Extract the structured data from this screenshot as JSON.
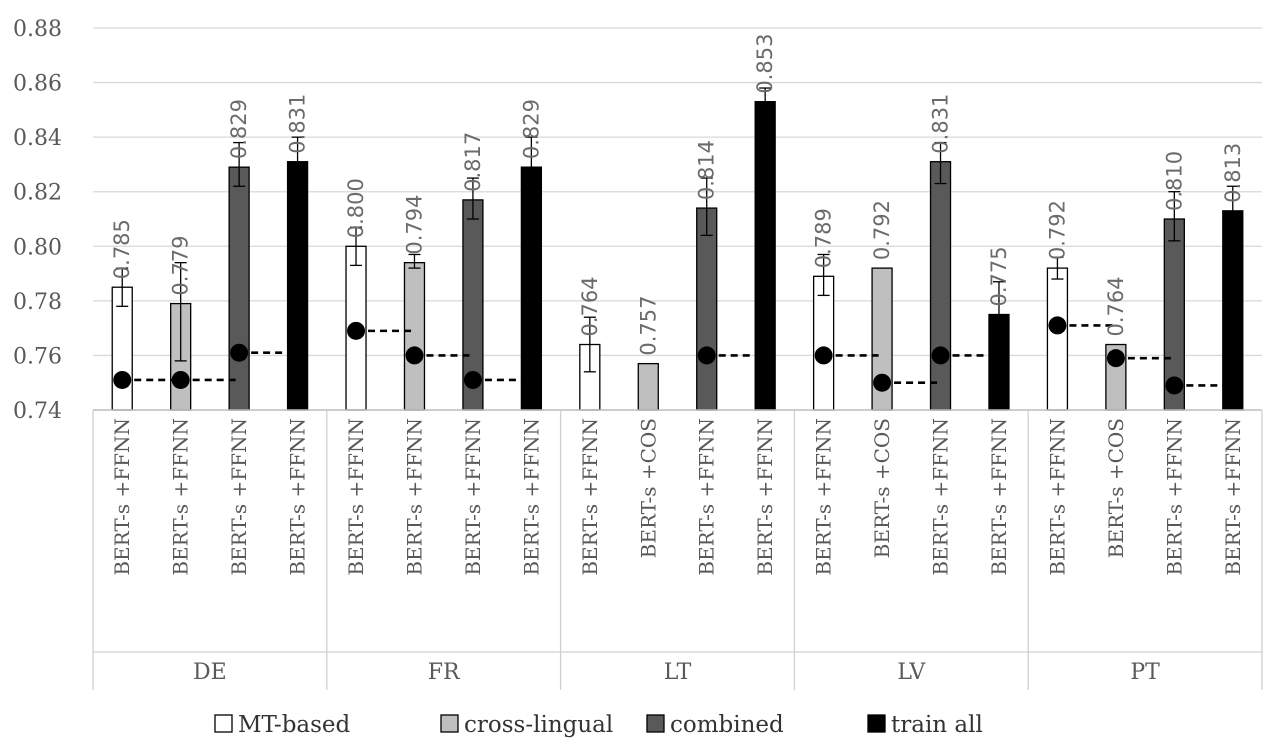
{
  "chart_data": {
    "type": "bar",
    "title": "",
    "xlabel": "",
    "ylabel": "",
    "ylim": [
      0.74,
      0.88
    ],
    "yticks": [
      "0.74",
      "0.76",
      "0.78",
      "0.80",
      "0.82",
      "0.84",
      "0.86",
      "0.88"
    ],
    "grid": true,
    "legend_position": "bottom",
    "legend": [
      {
        "name": "MT-based",
        "color": "#ffffff"
      },
      {
        "name": "cross-lingual",
        "color": "#bfbfbf"
      },
      {
        "name": "combined",
        "color": "#595959"
      },
      {
        "name": "train all",
        "color": "#000000"
      }
    ],
    "groups": [
      {
        "name": "DE",
        "bars": [
          {
            "label": "BERT-s +FFNN",
            "series": "MT-based",
            "value": 0.785,
            "value_label": "0.785",
            "err": [
              0.778,
              0.792
            ],
            "baseline": 0.751
          },
          {
            "label": "BERT-s +FFNN",
            "series": "cross-lingual",
            "value": 0.779,
            "value_label": "0.779",
            "err": [
              0.758,
              0.794
            ],
            "baseline": 0.751
          },
          {
            "label": "BERT-s +FFNN",
            "series": "combined",
            "value": 0.829,
            "value_label": "0.829",
            "err": [
              0.822,
              0.838
            ],
            "baseline": 0.761
          },
          {
            "label": "BERT-s +FFNN",
            "series": "train all",
            "value": 0.831,
            "value_label": "0.831",
            "err": [
              0.821,
              0.84
            ],
            "baseline": 0.751
          }
        ]
      },
      {
        "name": "FR",
        "bars": [
          {
            "label": "BERT-s +FFNN",
            "series": "MT-based",
            "value": 0.8,
            "value_label": "0.800",
            "err": [
              0.793,
              0.807
            ],
            "baseline": 0.769
          },
          {
            "label": "BERT-s +FFNN",
            "series": "cross-lingual",
            "value": 0.794,
            "value_label": "0.794",
            "err": [
              0.792,
              0.797
            ],
            "baseline": 0.76
          },
          {
            "label": "BERT-s +FFNN",
            "series": "combined",
            "value": 0.817,
            "value_label": "0.817",
            "err": [
              0.81,
              0.825
            ],
            "baseline": 0.751
          },
          {
            "label": "BERT-s +FFNN",
            "series": "train all",
            "value": 0.829,
            "value_label": "0.829",
            "err": [
              0.816,
              0.84
            ],
            "baseline": 0.769
          }
        ]
      },
      {
        "name": "LT",
        "bars": [
          {
            "label": "BERT-s +FFNN",
            "series": "MT-based",
            "value": 0.764,
            "value_label": "0.764",
            "err": [
              0.754,
              0.774
            ],
            "baseline": null
          },
          {
            "label": "BERT-s +COS",
            "series": "cross-lingual",
            "value": 0.757,
            "value_label": "0.757",
            "err": null,
            "baseline": null
          },
          {
            "label": "BERT-s +FFNN",
            "series": "combined",
            "value": 0.814,
            "value_label": "0.814",
            "err": [
              0.804,
              0.825
            ],
            "baseline": 0.76
          },
          {
            "label": "BERT-s +FFNN",
            "series": "train all",
            "value": 0.853,
            "value_label": "0.853",
            "err": [
              0.848,
              0.858
            ],
            "baseline": 0.76
          }
        ]
      },
      {
        "name": "LV",
        "bars": [
          {
            "label": "BERT-s +FFNN",
            "series": "MT-based",
            "value": 0.789,
            "value_label": "0.789",
            "err": [
              0.782,
              0.797
            ],
            "baseline": 0.76
          },
          {
            "label": "BERT-s +COS",
            "series": "cross-lingual",
            "value": 0.792,
            "value_label": "0.792",
            "err": null,
            "baseline": 0.75
          },
          {
            "label": "BERT-s +FFNN",
            "series": "combined",
            "value": 0.831,
            "value_label": "0.831",
            "err": [
              0.823,
              0.838
            ],
            "baseline": 0.76
          },
          {
            "label": "BERT-s +FFNN",
            "series": "train all",
            "value": 0.775,
            "value_label": "0.775",
            "err": [
              0.762,
              0.787
            ],
            "baseline": null
          }
        ]
      },
      {
        "name": "PT",
        "bars": [
          {
            "label": "BERT-s +FFNN",
            "series": "MT-based",
            "value": 0.792,
            "value_label": "0.792",
            "err": [
              0.788,
              0.796
            ],
            "baseline": 0.771
          },
          {
            "label": "BERT-s +COS",
            "series": "cross-lingual",
            "value": 0.764,
            "value_label": "0.764",
            "err": null,
            "baseline": 0.759
          },
          {
            "label": "BERT-s +FFNN",
            "series": "combined",
            "value": 0.81,
            "value_label": "0.810",
            "err": [
              0.802,
              0.82
            ],
            "baseline": 0.749
          },
          {
            "label": "BERT-s +FFNN",
            "series": "train all",
            "value": 0.813,
            "value_label": "0.813",
            "err": [
              0.804,
              0.822
            ],
            "baseline": 0.749
          }
        ]
      }
    ]
  }
}
